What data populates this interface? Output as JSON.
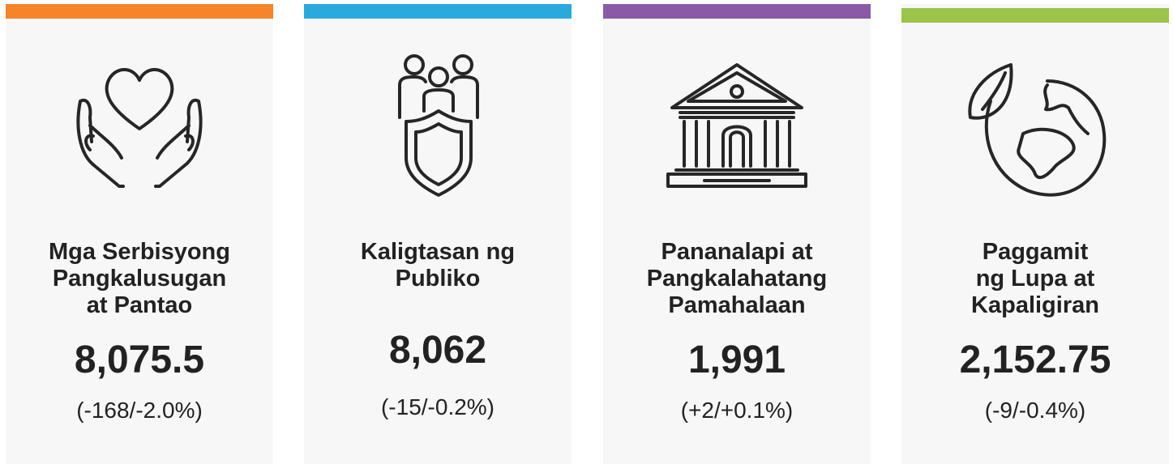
{
  "cards": [
    {
      "color": "#f5842a",
      "title": [
        "Mga Serbisyong",
        "Pangkalusugan",
        "at Pantao"
      ],
      "value": "8,075.5",
      "change": "(-168/-2.0%)"
    },
    {
      "color": "#2aa9dd",
      "title": [
        "Kaligtasan ng",
        "Publiko"
      ],
      "value": "8,062",
      "change": "(-15/-0.2%)"
    },
    {
      "color": "#8a5aa6",
      "title": [
        "Pananalapi at",
        "Pangkalahatang",
        "Pamahalaan"
      ],
      "value": "1,991",
      "change": "(+2/+0.1%)"
    },
    {
      "color": "#9cc34a",
      "title": [
        "Paggamit",
        "ng Lupa at",
        "Kapaligiran"
      ],
      "value": "2,152.75",
      "change": "(-9/-0.4%)"
    }
  ]
}
